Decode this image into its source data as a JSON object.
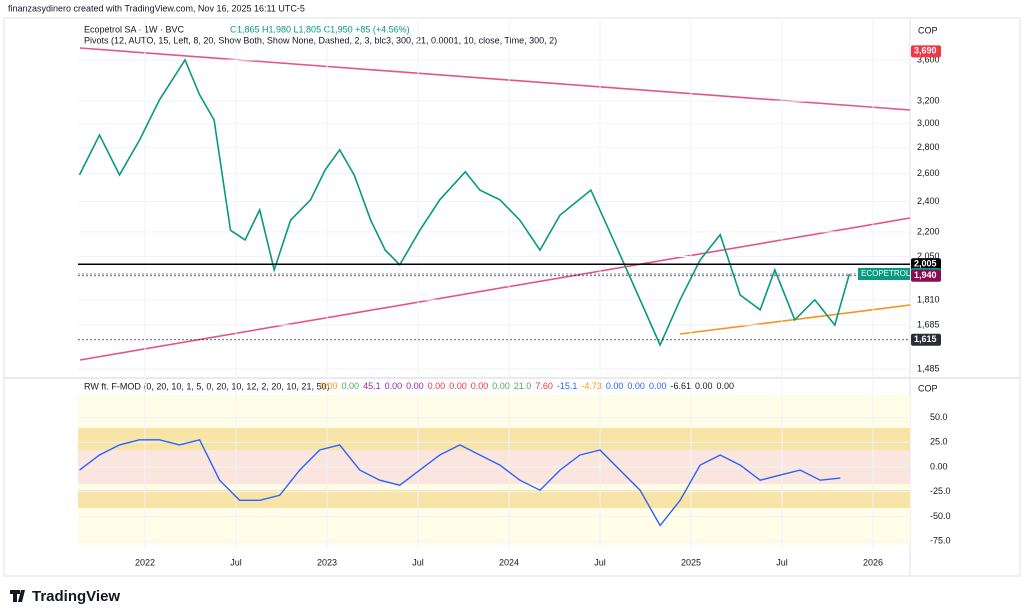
{
  "header": {
    "credit": "finanzasydinero created with TradingView.com, Nov 16, 2025 16:11 UTC-5"
  },
  "footer": {
    "brand": "TradingView"
  },
  "chart_data": [
    {
      "type": "line",
      "title": "Ecopetrol SA · 1W · BVC",
      "ohlc": "O1,865 H1,980 L1,805 C1,950 +85 (+4.56%)",
      "indicator": "Pivots (12, AUTO, 15, Left, 8, 20, Show Both, Show None, Dashed, 2, 3, blc3, 300, 21, 0.0001, 10, close, Time, 300, 2)",
      "currency": "COP",
      "log": true,
      "x": [
        2021.64,
        2021.75,
        2021.86,
        2021.97,
        2022.08,
        2022.22,
        2022.3,
        2022.38,
        2022.47,
        2022.55,
        2022.63,
        2022.71,
        2022.8,
        2022.91,
        2022.99,
        2023.07,
        2023.15,
        2023.24,
        2023.32,
        2023.4,
        2023.51,
        2023.62,
        2023.76,
        2023.84,
        2023.95,
        2024.06,
        2024.17,
        2024.28,
        2024.45,
        2024.55,
        2024.66,
        2024.83,
        2024.94,
        2025.05,
        2025.16,
        2025.27,
        2025.38,
        2025.46,
        2025.57,
        2025.68,
        2025.79,
        2025.87
      ],
      "series": [
        {
          "name": "ECOPETROL",
          "color": "#089981",
          "values": [
            2590,
            2904,
            2590,
            2862,
            3212,
            3600,
            3258,
            3031,
            2210,
            2150,
            2343,
            1973,
            2275,
            2412,
            2628,
            2783,
            2588,
            2275,
            2088,
            2002,
            2210,
            2412,
            2614,
            2480,
            2412,
            2275,
            2088,
            2308,
            2480,
            2210,
            1944,
            1591,
            1811,
            2030,
            2182,
            1836,
            1760,
            1973,
            1710,
            1811,
            1685,
            1950
          ]
        }
      ],
      "xlim": [
        2021.632,
        2026.203
      ],
      "xticks": [
        2022,
        {
          "value": 2022.5,
          "label": "Jul"
        },
        2023,
        {
          "value": 2023.5,
          "label": "Jul"
        },
        2024,
        {
          "value": 2024.5,
          "label": "Jul"
        },
        2025,
        {
          "value": 2025.5,
          "label": "Jul"
        },
        2026
      ],
      "ylim": [
        1460,
        4060
      ],
      "yticks": [
        {
          "value": 3600,
          "label": "3,600"
        },
        {
          "value": 3200,
          "label": "3,200"
        },
        {
          "value": 3000,
          "label": "3,000"
        },
        {
          "value": 2800,
          "label": "2,800"
        },
        {
          "value": 2600,
          "label": "2,600"
        },
        {
          "value": 2400,
          "label": "2,400"
        },
        {
          "value": 2200,
          "label": "2,200"
        },
        {
          "value": 2050,
          "label": "2,050"
        },
        {
          "value": 1810,
          "label": "1,810"
        },
        {
          "value": 1685,
          "label": "1,685"
        },
        {
          "value": 1485,
          "label": "1,485"
        }
      ],
      "price_tags": [
        {
          "value": 3690,
          "label": "3,690",
          "color": "#f23645"
        },
        {
          "value": 2005,
          "label": "2,005",
          "color": "#000000"
        },
        {
          "value": 1950,
          "label": "1,950",
          "color": "#089981"
        },
        {
          "value": 1940,
          "label": "1,940",
          "color": "#880e4f"
        },
        {
          "value": 1615,
          "label": "1,615",
          "color": "#2a2e39"
        }
      ]
    },
    {
      "type": "line",
      "title": "RW ft. F-MOD (0, 20, 10, 1, 5, 0, 20, 10, 12, 2, 20, 10, 21, 50)",
      "readouts": [
        {
          "text": "0.00",
          "color": "#ff9800"
        },
        {
          "text": "0.00",
          "color": "#4caf50"
        },
        {
          "text": "45.1",
          "color": "#9c27b0"
        },
        {
          "text": "0.00",
          "color": "#9c27b0"
        },
        {
          "text": "0.00",
          "color": "#9c27b0"
        },
        {
          "text": "0.00",
          "color": "#f23645"
        },
        {
          "text": "0.00",
          "color": "#f23645"
        },
        {
          "text": "0.00",
          "color": "#f23645"
        },
        {
          "text": "0.00",
          "color": "#4caf50"
        },
        {
          "text": "21.0",
          "color": "#4caf50"
        },
        {
          "text": "7.60",
          "color": "#f23645"
        },
        {
          "text": "-15.1",
          "color": "#2962ff"
        },
        {
          "text": "-4.73",
          "color": "#ff9800"
        },
        {
          "text": "0.00",
          "color": "#2962ff"
        },
        {
          "text": "0.00",
          "color": "#2962ff"
        },
        {
          "text": "0.00",
          "color": "#2962ff"
        },
        {
          "text": "-6.61",
          "color": "#131722"
        },
        {
          "text": "0.00",
          "color": "#131722"
        },
        {
          "text": "0.00",
          "color": "#131722"
        }
      ],
      "currency": "COP",
      "x": [
        2021.64,
        2021.75,
        2021.86,
        2021.97,
        2022.08,
        2022.19,
        2022.3,
        2022.41,
        2022.52,
        2022.63,
        2022.74,
        2022.85,
        2022.96,
        2023.07,
        2023.18,
        2023.29,
        2023.4,
        2023.51,
        2023.62,
        2023.73,
        2023.84,
        2023.95,
        2024.06,
        2024.17,
        2024.28,
        2024.39,
        2024.5,
        2024.61,
        2024.72,
        2024.83,
        2024.94,
        2025.05,
        2025.16,
        2025.27,
        2025.38,
        2025.49,
        2025.6,
        2025.71,
        2025.82
      ],
      "series": [
        {
          "name": "RW",
          "color": "#2962ff",
          "values": [
            -3.1,
            12.2,
            22.4,
            27.6,
            27.6,
            22.4,
            27.6,
            -13.3,
            -33.7,
            -33.7,
            -28.6,
            -3.1,
            17.3,
            22.4,
            -3.1,
            -13.3,
            -18.4,
            -3.1,
            12.2,
            22.4,
            12.2,
            2.0,
            -13.3,
            -23.5,
            -3.1,
            12.2,
            17.3,
            -3.1,
            -23.5,
            -59.2,
            -33.7,
            2.0,
            12.2,
            2.0,
            -13.3,
            -8.2,
            -3.1,
            -13.3,
            -11.2
          ]
        }
      ],
      "ylim": [
        -82,
        75
      ],
      "yticks": [
        {
          "value": 50,
          "label": "50.0"
        },
        {
          "value": 25,
          "label": "25.0"
        },
        {
          "value": 0,
          "label": "0.00"
        },
        {
          "value": -25,
          "label": "-25.0"
        },
        {
          "value": -50,
          "label": "-50.0"
        },
        {
          "value": -75,
          "label": "-75.0"
        }
      ]
    }
  ]
}
